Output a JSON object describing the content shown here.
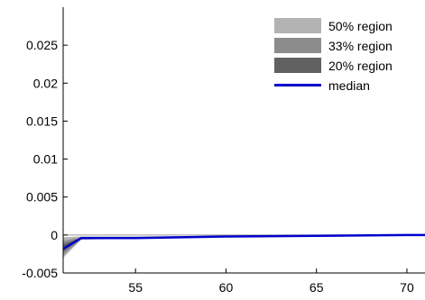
{
  "chart_data": {
    "type": "area",
    "title": "",
    "xlabel": "",
    "ylabel": "",
    "xlim": [
      51,
      71
    ],
    "ylim": [
      -0.005,
      0.03
    ],
    "x_ticks": [
      55,
      60,
      65,
      70
    ],
    "x_tick_labels": [
      "55",
      "60",
      "65",
      "70"
    ],
    "y_ticks": [
      -0.005,
      0,
      0.005,
      0.01,
      0.015,
      0.02,
      0.025
    ],
    "y_tick_labels": [
      "-0.005",
      "0",
      "0.005",
      "0.01",
      "0.015",
      "0.02",
      "0.025"
    ],
    "grid": false,
    "legend_position": "top-right",
    "x": [
      51,
      52,
      55,
      60,
      65,
      70,
      71
    ],
    "series": [
      {
        "name": "50% region",
        "color": "#b3b3b3",
        "lower": [
          -0.003,
          -0.0006,
          -0.0005,
          -0.0003,
          -0.0002,
          -0.0001,
          -0.0001
        ],
        "upper": [
          -0.0003,
          -0.0002,
          -0.0002,
          -0.0001,
          0.0,
          0.0,
          0.0
        ]
      },
      {
        "name": "33% region",
        "color": "#8c8c8c",
        "lower": [
          -0.0026,
          -0.0006,
          -0.0004,
          -0.0003,
          -0.0002,
          -0.0001,
          -0.0001
        ],
        "upper": [
          -0.0008,
          -0.0003,
          -0.0003,
          -0.0002,
          -0.0001,
          0.0,
          0.0
        ]
      },
      {
        "name": "20% region",
        "color": "#616161",
        "lower": [
          -0.0022,
          -0.0005,
          -0.0004,
          -0.0002,
          -0.0001,
          -0.0001,
          -0.0001
        ],
        "upper": [
          -0.0012,
          -0.0004,
          -0.0003,
          -0.0002,
          -0.0001,
          0.0,
          0.0
        ]
      },
      {
        "name": "median",
        "color": "#0000cc",
        "values": [
          -0.0018,
          -0.0004,
          -0.0004,
          -0.0002,
          -0.0001,
          0.0,
          0.0
        ]
      }
    ]
  }
}
